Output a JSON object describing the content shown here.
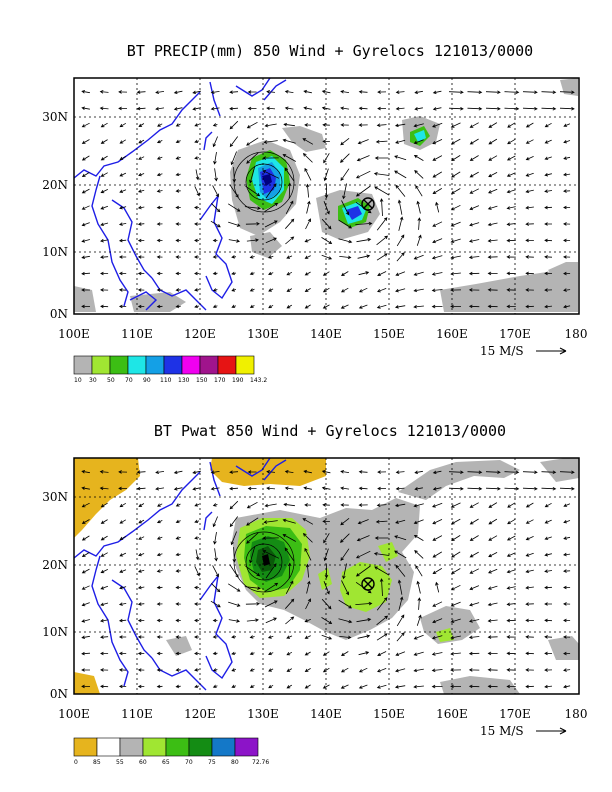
{
  "panels": [
    {
      "title": "BT PRECIP(mm) 850 Wind + Gyrelocs 121013/0000",
      "x_ticks": [
        "100E",
        "110E",
        "120E",
        "130E",
        "140E",
        "150E",
        "160E",
        "170E",
        "180"
      ],
      "y_ticks": [
        "30N",
        "20N",
        "10N",
        "0N"
      ],
      "vector_ref": "15 M/S",
      "colorbar_labels": [
        "10",
        "30",
        "50",
        "70",
        "90",
        "110",
        "130",
        "150",
        "170",
        "190",
        "143.2"
      ],
      "colorbar_colors": [
        "#b4b4b4",
        "#a0e632",
        "#3cbe14",
        "#1ee6e6",
        "#14a0e6",
        "#1e32e6",
        "#f000f0",
        "#a0148c",
        "#e61414",
        "#f0f000"
      ]
    },
    {
      "title": "BT Pwat 850 Wind + Gyrelocs 121013/0000",
      "x_ticks": [
        "100E",
        "110E",
        "120E",
        "130E",
        "140E",
        "150E",
        "160E",
        "170E",
        "180"
      ],
      "y_ticks": [
        "30N",
        "20N",
        "10N",
        "0N"
      ],
      "vector_ref": "15 M/S",
      "colorbar_labels": [
        "0",
        "85",
        "55",
        "60",
        "65",
        "70",
        "75",
        "80",
        "72.76"
      ],
      "colorbar_colors": [
        "#e6b41e",
        "#ffffff",
        "#b4b4b4",
        "#a0e632",
        "#3cbe14",
        "#148c14",
        "#1478c8",
        "#8c14c8"
      ]
    }
  ],
  "gyre_marker": "circled-x-icon",
  "coast_color": "#1e1ee6"
}
